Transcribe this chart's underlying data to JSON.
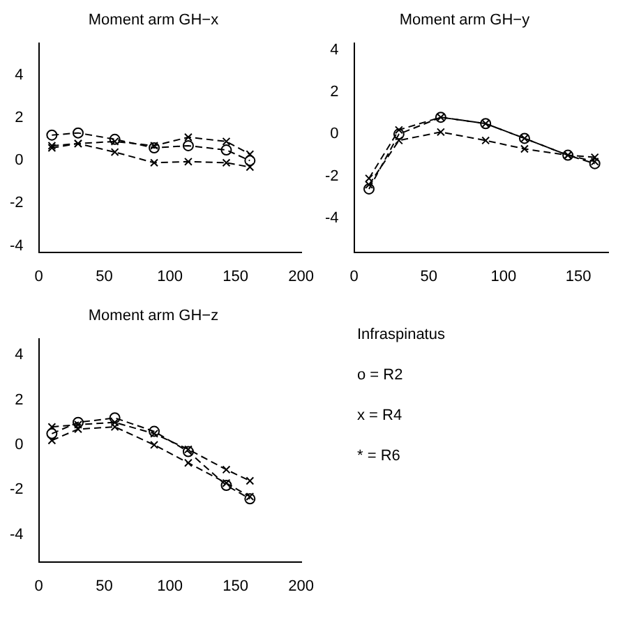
{
  "chart_data": [
    {
      "type": "line",
      "title": "Moment arm GH−x",
      "x": [
        10,
        30,
        58,
        88,
        114,
        143,
        161
      ],
      "xlim": [
        0,
        200
      ],
      "xticks": [
        0,
        50,
        100,
        150,
        200
      ],
      "ylim": [
        -4.3,
        5.5
      ],
      "yticks": [
        -4,
        -2,
        0,
        2,
        4
      ],
      "grid": false,
      "legend": false,
      "line_style": "dashed",
      "series": [
        {
          "color": "#000000",
          "marker": "circle",
          "values": [
            1.2,
            1.3,
            1.0,
            0.6,
            0.7,
            0.5,
            0.0
          ]
        },
        {
          "color": "#000000",
          "marker": "cross",
          "values": [
            0.7,
            0.8,
            0.4,
            -0.1,
            -0.05,
            -0.1,
            -0.3
          ]
        },
        {
          "color": "#000000",
          "marker": "cross",
          "values": [
            0.6,
            0.8,
            0.9,
            0.7,
            1.1,
            0.9,
            0.3
          ]
        }
      ]
    },
    {
      "type": "line",
      "title": "Moment arm GH−y",
      "x": [
        10,
        30,
        58,
        88,
        114,
        143,
        161
      ],
      "xlim": [
        0,
        170
      ],
      "xticks": [
        0,
        50,
        100,
        150
      ],
      "ylim": [
        -5.6,
        4.3
      ],
      "yticks": [
        -4,
        -2,
        0,
        2,
        4
      ],
      "grid": false,
      "legend": false,
      "line_style": "dashed",
      "series": [
        {
          "color": "#000000",
          "marker": "circle",
          "values": [
            -2.6,
            0.0,
            0.8,
            0.5,
            -0.2,
            -1.0,
            -1.4
          ]
        },
        {
          "color": "#000000",
          "marker": "cross",
          "values": [
            -2.1,
            0.2,
            0.8,
            0.5,
            -0.2,
            -1.0,
            -1.3
          ]
        },
        {
          "color": "#000000",
          "marker": "cross",
          "values": [
            -2.4,
            -0.3,
            0.1,
            -0.3,
            -0.7,
            -1.0,
            -1.1
          ]
        }
      ]
    },
    {
      "type": "line",
      "title": "Moment arm GH−z",
      "x": [
        10,
        30,
        58,
        88,
        114,
        143,
        161
      ],
      "xlim": [
        0,
        200
      ],
      "xticks": [
        0,
        50,
        100,
        150,
        200
      ],
      "ylim": [
        -5.2,
        4.7
      ],
      "yticks": [
        -4,
        -2,
        0,
        2,
        4
      ],
      "grid": false,
      "legend": false,
      "line_style": "dashed",
      "series": [
        {
          "color": "#000000",
          "marker": "circle",
          "values": [
            0.5,
            1.0,
            1.2,
            0.6,
            -0.3,
            -1.8,
            -2.4
          ]
        },
        {
          "color": "#000000",
          "marker": "cross",
          "values": [
            0.8,
            0.9,
            1.0,
            0.5,
            -0.2,
            -1.1,
            -1.6
          ]
        },
        {
          "color": "#000000",
          "marker": "cross",
          "values": [
            0.2,
            0.7,
            0.8,
            0.0,
            -0.8,
            -1.7,
            -2.3
          ]
        }
      ]
    },
    {
      "type": "other",
      "title": "Infraspinatus",
      "annotations": [
        "o = R2",
        "x = R4",
        "* = R6"
      ]
    }
  ]
}
